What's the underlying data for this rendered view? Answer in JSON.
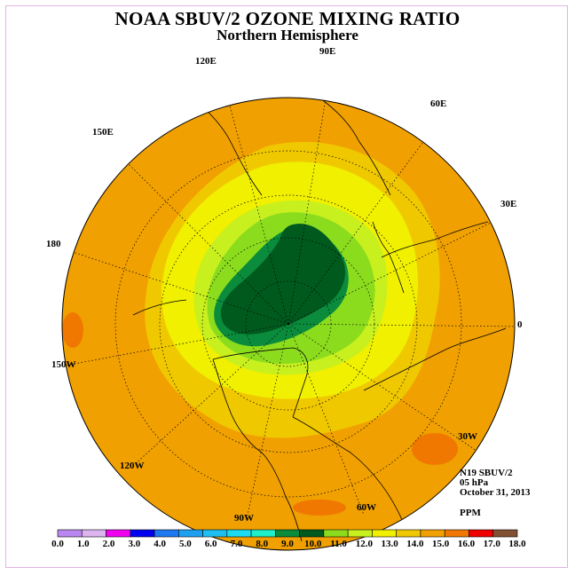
{
  "title": "NOAA SBUV/2 OZONE MIXING RATIO",
  "subtitle": "Northern Hemisphere",
  "map": {
    "projection": "north polar stereographic",
    "longitude_labels": [
      "90E",
      "60E",
      "30E",
      "0",
      "30W",
      "60W",
      "90W",
      "120W",
      "150W",
      "180",
      "150E",
      "120E"
    ]
  },
  "info": {
    "satellite": "N19 SBUV/2",
    "pressure_level": "05 hPa",
    "date": "October 31, 2013",
    "units": "PPM"
  },
  "colorbar": {
    "labels": [
      "0.0",
      "1.0",
      "2.0",
      "3.0",
      "4.0",
      "5.0",
      "6.0",
      "7.0",
      "8.0",
      "9.0",
      "10.0",
      "11.0",
      "12.0",
      "13.0",
      "14.0",
      "15.0",
      "16.0",
      "17.0",
      "18.0"
    ],
    "colors": [
      "#b987f0",
      "#dcb4f0",
      "#f000f0",
      "#0000f0",
      "#1e78f0",
      "#1ea0f0",
      "#1ebef0",
      "#1edcf0",
      "#1ef0c8",
      "#0a8c3c",
      "#005a1e",
      "#8cdc1e",
      "#c8f01e",
      "#f0f000",
      "#f0c800",
      "#f0a000",
      "#f07800",
      "#f00000",
      "#825032"
    ]
  }
}
